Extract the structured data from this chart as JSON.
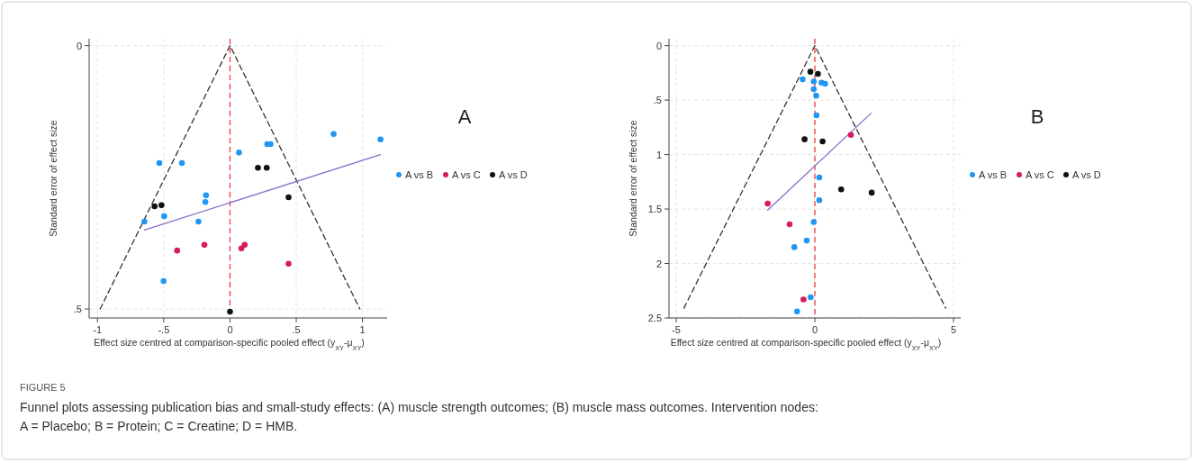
{
  "chart_data": [
    {
      "type": "scatter",
      "xlabel": "Effect size centred at comparison-specific pooled effect (y$_{XY}$-μ$_{XY}$)",
      "ylabel": "Standard error of effect size",
      "annotations": [
        "A",
        "FIGURE 5",
        "Funnel plots assessing publication bias and small-study effects: (A) muscle strength outcomes; (B) muscle mass outcomes. Intervention nodes:",
        "A = Placebo; B = Protein; C = Creatine; D = HMB."
      ],
      "xlim": [
        -1.063,
        1.186
      ],
      "xticks": [
        -1,
        {
          "value": -0.5,
          "label": "-.5"
        },
        0,
        {
          "value": 0.5,
          "label": ".5"
        },
        1
      ],
      "ylim": [
        0.517,
        -0.013
      ],
      "yticks": [
        0,
        {
          "value": 0.5,
          "label": ".5"
        }
      ],
      "grid": true,
      "legend": "right",
      "marker": "circle",
      "ref_lines": [
        {
          "axis": "x",
          "value": 0,
          "color": "#f03c3c",
          "line_style": "dashed"
        }
      ],
      "series": [
        {
          "name": "A vs B",
          "color": "#2196f3",
          "x": [
            -0.533,
            -0.363,
            0.068,
            0.281,
            0.306,
            0.782,
            1.136,
            -0.181,
            -0.186,
            -0.497,
            -0.646,
            -0.238,
            -0.501
          ],
          "values": [
            0.223,
            0.223,
            0.203,
            0.187,
            0.187,
            0.168,
            0.178,
            0.284,
            0.297,
            0.324,
            0.334,
            0.334,
            0.447
          ]
        },
        {
          "name": "A vs C",
          "color": "#d81b60",
          "x": [
            -0.399,
            -0.193,
            0.086,
            0.111,
            0.442
          ],
          "values": [
            0.389,
            0.378,
            0.385,
            0.378,
            0.414
          ]
        },
        {
          "name": "A vs D",
          "color": "#111111",
          "x": [
            0.211,
            0.277,
            0.442,
            -0.569,
            -0.517,
            0
          ],
          "values": [
            0.232,
            0.232,
            0.288,
            0.305,
            0.303,
            0.505
          ]
        },
        {
          "type": "line",
          "marker": "none",
          "color": "#333333",
          "line_style": "dashed",
          "x": [
            -0.98,
            0,
            0.98
          ],
          "values": [
            0.5,
            0,
            0.5
          ]
        },
        {
          "type": "line",
          "marker": "none",
          "color": "#8a6cc9",
          "line_style": "solid",
          "x": [
            -0.646,
            1.136
          ],
          "values": [
            0.35,
            0.207
          ]
        }
      ]
    },
    {
      "type": "scatter",
      "xlabel": "Effect size centred at comparison-specific pooled effect (y$_{XY}$-μ$_{XY}$)",
      "ylabel": "Standard error of effect size",
      "annotations": [
        "B"
      ],
      "xlim": [
        -5.26,
        5.26
      ],
      "xticks": [
        -5,
        0,
        5
      ],
      "ylim": [
        2.5,
        -0.063
      ],
      "yticks": [
        0,
        {
          "value": 0.5,
          "label": ".5"
        },
        1,
        1.5,
        2,
        2.5
      ],
      "grid": true,
      "legend": "right",
      "marker": "circle",
      "ref_lines": [
        {
          "axis": "x",
          "value": 0,
          "color": "#f03c3c",
          "line_style": "dashed"
        }
      ],
      "series": [
        {
          "name": "A vs B",
          "color": "#2196f3",
          "x": [
            -0.44,
            -0.04,
            0.24,
            0.37,
            -0.04,
            0.05,
            0.06,
            0.16,
            0.16,
            -0.04,
            -0.29,
            -0.74,
            -0.15,
            -0.64
          ],
          "values": [
            0.31,
            0.33,
            0.34,
            0.35,
            0.4,
            0.46,
            0.64,
            1.21,
            1.42,
            1.62,
            1.79,
            1.85,
            2.31,
            2.44
          ]
        },
        {
          "name": "A vs C",
          "color": "#d81b60",
          "x": [
            1.3,
            -1.7,
            -0.91,
            -0.41
          ],
          "values": [
            0.82,
            1.45,
            1.64,
            2.33
          ]
        },
        {
          "name": "A vs D",
          "color": "#111111",
          "x": [
            -0.16,
            0.11,
            -0.37,
            0.28,
            0.95,
            2.05
          ],
          "values": [
            0.24,
            0.26,
            0.86,
            0.88,
            1.32,
            1.35
          ]
        },
        {
          "type": "line",
          "marker": "none",
          "color": "#333333",
          "line_style": "dashed",
          "x": [
            -4.72,
            0,
            4.72
          ],
          "values": [
            2.41,
            0,
            2.41
          ]
        },
        {
          "type": "line",
          "marker": "none",
          "color": "#8a6cc9",
          "line_style": "solid",
          "x": [
            -1.7,
            2.03
          ],
          "values": [
            1.51,
            0.62
          ]
        }
      ]
    }
  ]
}
